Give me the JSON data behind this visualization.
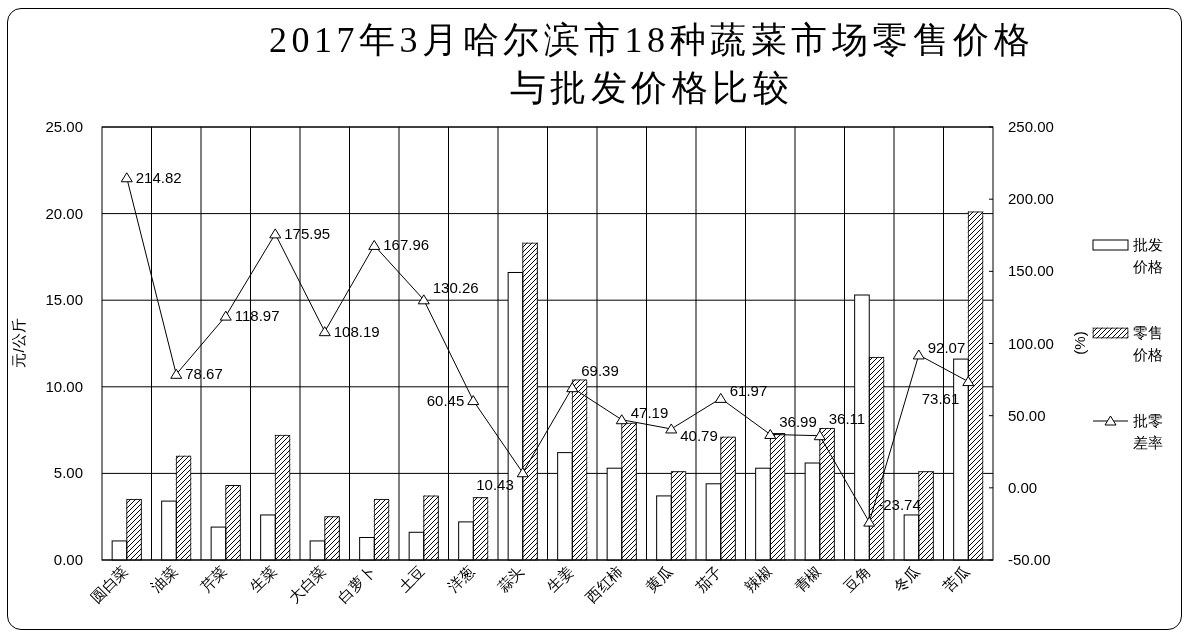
{
  "chart_data": {
    "type": "bar",
    "title": "2017年3月哈尔滨市18种蔬菜市场零售价格与批发价格比较",
    "ylabel": "元/公斤",
    "y2label": "(%)",
    "categories": [
      "圆白菜",
      "油菜",
      "芹菜",
      "生菜",
      "大白菜",
      "白萝卜",
      "土豆",
      "洋葱",
      "蒜头",
      "生姜",
      "西红柿",
      "黄瓜",
      "茄子",
      "辣椒",
      "青椒",
      "豆角",
      "冬瓜",
      "苦瓜"
    ],
    "series": [
      {
        "name": "批发价格",
        "color": "#ffffff",
        "values": [
          1.1,
          3.4,
          1.9,
          2.6,
          1.1,
          1.3,
          1.6,
          2.2,
          16.6,
          6.2,
          5.3,
          3.7,
          4.4,
          5.3,
          5.6,
          15.3,
          2.6,
          11.6
        ]
      },
      {
        "name": "零售价格",
        "color": "#000000",
        "values": [
          3.5,
          6.0,
          4.3,
          7.2,
          2.5,
          3.5,
          3.7,
          3.6,
          18.3,
          10.4,
          7.9,
          5.1,
          7.1,
          7.3,
          7.6,
          11.7,
          5.1,
          20.1
        ]
      },
      {
        "name": "批零差率",
        "type": "line",
        "axis": "y2",
        "color": "#000000",
        "marker": "triangle",
        "values": [
          214.82,
          78.67,
          118.97,
          175.95,
          108.19,
          167.96,
          130.26,
          60.45,
          10.43,
          69.39,
          47.19,
          40.79,
          61.97,
          36.99,
          36.11,
          -23.74,
          92.07,
          73.61
        ],
        "value_labels": [
          "214.82",
          "78.67",
          "118.97",
          "175.95",
          "108.19",
          "167.96",
          "130.26",
          "60.45",
          "10.43",
          "69.39",
          "47.19",
          "40.79",
          "61.97",
          "36.99",
          "36.11",
          "-23.74",
          "92.07",
          "73.61"
        ]
      }
    ],
    "ylim": [
      0,
      25
    ],
    "yticks": [
      {
        "value": 0,
        "label": "0.00"
      },
      {
        "value": 5,
        "label": "5.00"
      },
      {
        "value": 10,
        "label": "10.00"
      },
      {
        "value": 15,
        "label": "15.00"
      },
      {
        "value": 20,
        "label": "20.00"
      },
      {
        "value": 25,
        "label": "25.00"
      }
    ],
    "y2lim": [
      -50,
      250
    ],
    "y2ticks": [
      {
        "value": -50,
        "label": "-50.00"
      },
      {
        "value": 0,
        "label": "0.00"
      },
      {
        "value": 50,
        "label": "50.00"
      },
      {
        "value": 100,
        "label": "100.00"
      },
      {
        "value": 150,
        "label": "150.00"
      },
      {
        "value": 200,
        "label": "200.00"
      },
      {
        "value": 250,
        "label": "250.00"
      }
    ],
    "grid": true,
    "legend": "right"
  }
}
